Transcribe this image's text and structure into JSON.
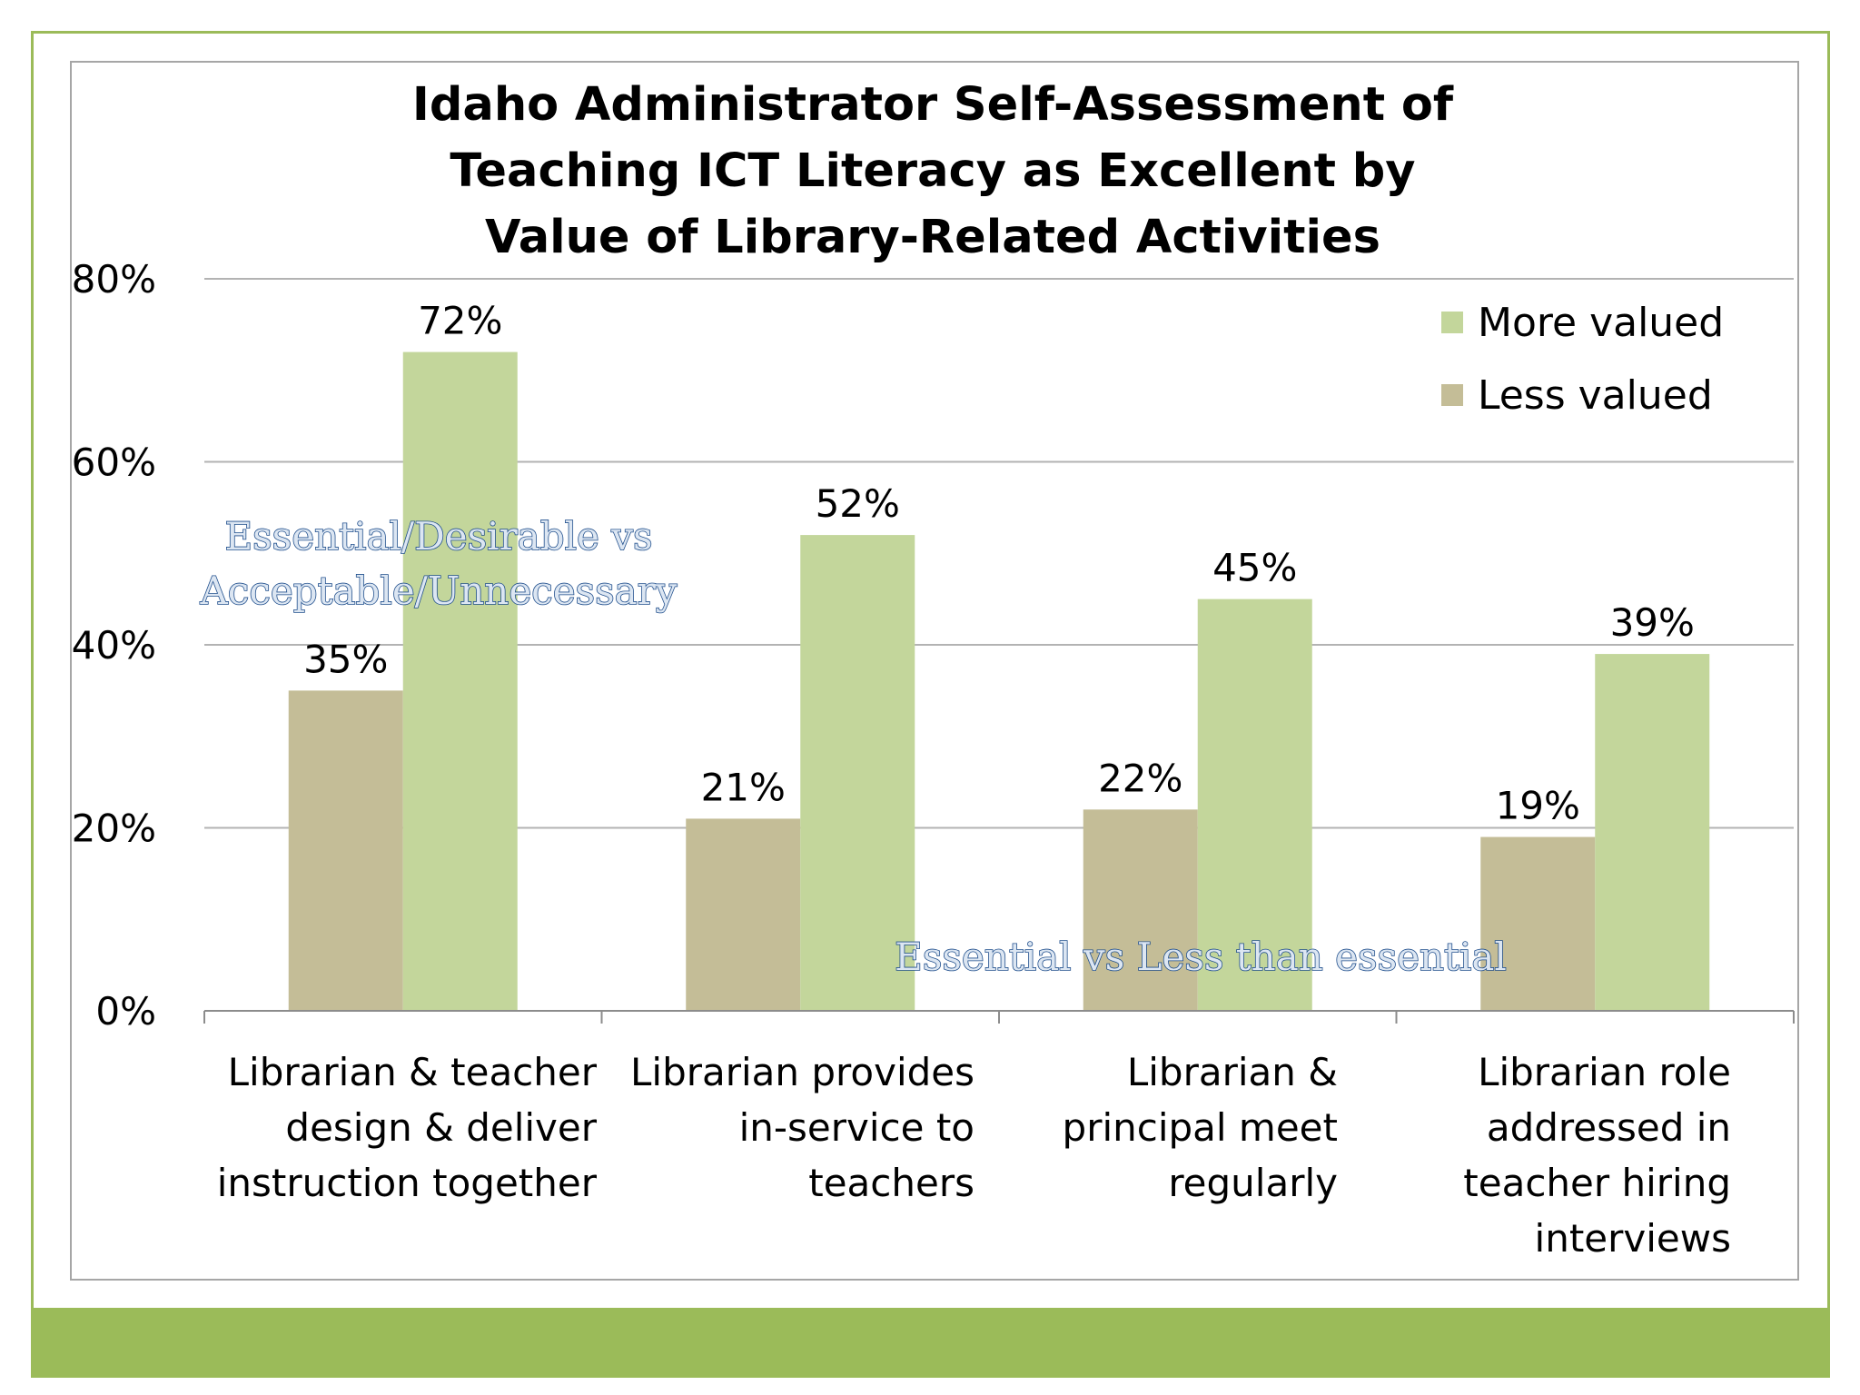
{
  "colors": {
    "frame": "#9bbb59",
    "band": "#9bbb59",
    "more_valued": "#c3d69b",
    "less_valued": "#c4bd97",
    "grid": "#b3b3b3",
    "annotation_fill": "#dce6f2",
    "annotation_stroke": "#1f4e8c"
  },
  "chart_data": {
    "type": "bar",
    "title": [
      "Idaho Administrator Self-Assessment of",
      "Teaching ICT Literacy as Excellent by",
      "Value of Library-Related Activities"
    ],
    "categories": [
      [
        "Librarian & teacher",
        "design & deliver",
        "instruction together"
      ],
      [
        "Librarian provides",
        "in-service to",
        "teachers"
      ],
      [
        "Librarian &",
        "principal meet",
        "regularly"
      ],
      [
        "Librarian role",
        "addressed in",
        "teacher hiring",
        "interviews"
      ]
    ],
    "series": [
      {
        "name": "Less valued",
        "values": [
          35,
          21,
          22,
          19
        ],
        "labels": [
          "35%",
          "21%",
          "22%",
          "19%"
        ],
        "color": "#c4bd97"
      },
      {
        "name": "More valued",
        "values": [
          72,
          52,
          45,
          39
        ],
        "labels": [
          "72%",
          "52%",
          "45%",
          "39%"
        ],
        "color": "#c3d69b"
      }
    ],
    "legend": {
      "placement": "top-right",
      "order": [
        "More valued",
        "Less valued"
      ]
    },
    "ylim": [
      0,
      80
    ],
    "yticks": [
      0,
      20,
      40,
      60,
      80
    ],
    "ytick_labels": [
      "0%",
      "20%",
      "40%",
      "60%",
      "80%"
    ],
    "grid": true,
    "annotations": [
      {
        "lines": [
          "Essential/Desirable vs",
          "Acceptable/Unnecessary"
        ],
        "near": "first-category"
      },
      {
        "lines": [
          "Essential vs Less than essential"
        ],
        "near": "bottom-right"
      }
    ]
  }
}
